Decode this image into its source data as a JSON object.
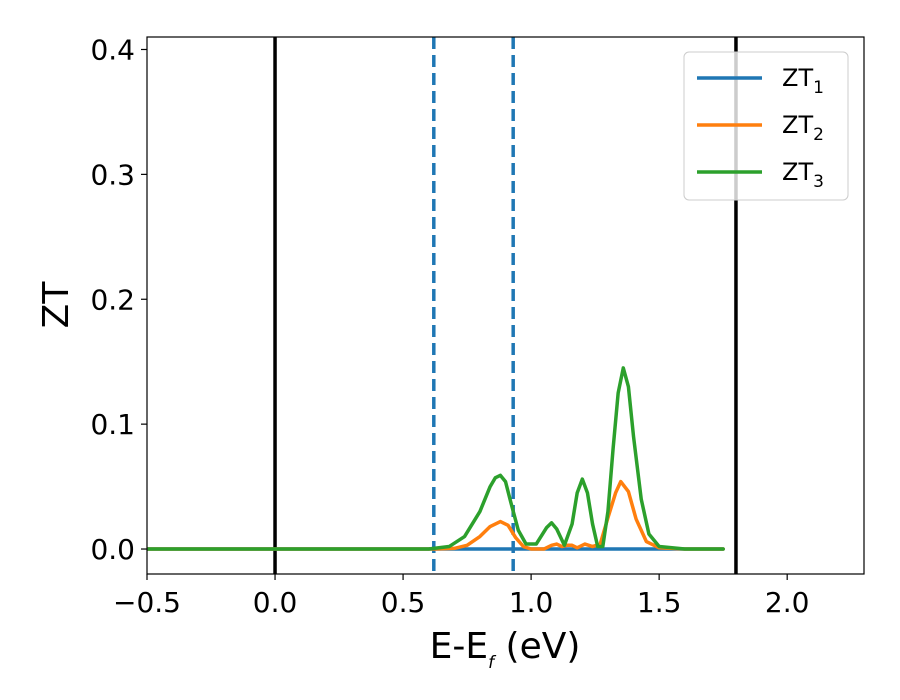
{
  "chart_data": {
    "type": "line",
    "xlabel": {
      "main": "E-E",
      "sub": "f",
      "suffix": " (eV)"
    },
    "ylabel": "ZT",
    "xlim": [
      -0.5,
      2.3
    ],
    "ylim": [
      -0.02,
      0.41
    ],
    "grid": false,
    "legend_position": "top-right",
    "x_ticks": [
      {
        "value": -0.5,
        "label": "−0.5"
      },
      {
        "value": 0.0,
        "label": "0.0"
      },
      {
        "value": 0.5,
        "label": "0.5"
      },
      {
        "value": 1.0,
        "label": "1.0"
      },
      {
        "value": 1.5,
        "label": "1.5"
      },
      {
        "value": 2.0,
        "label": "2.0"
      }
    ],
    "y_ticks": [
      {
        "value": 0.0,
        "label": "0.0"
      },
      {
        "value": 0.1,
        "label": "0.1"
      },
      {
        "value": 0.2,
        "label": "0.2"
      },
      {
        "value": 0.3,
        "label": "0.3"
      },
      {
        "value": 0.4,
        "label": "0.4"
      }
    ],
    "vertical_lines": [
      {
        "x": 0.0,
        "style": "solid",
        "color": "#000000"
      },
      {
        "x": 0.62,
        "style": "dashed",
        "color": "#1f77b4"
      },
      {
        "x": 0.93,
        "style": "dashed",
        "color": "#1f77b4"
      },
      {
        "x": 1.8,
        "style": "solid",
        "color": "#000000"
      }
    ],
    "series": [
      {
        "name": "ZT",
        "sub": "1",
        "color": "#1f77b4",
        "x": [
          -0.5,
          0.0,
          0.5,
          1.0,
          1.5,
          1.75
        ],
        "y": [
          0.0,
          0.0,
          0.0,
          0.0,
          0.0,
          0.0
        ]
      },
      {
        "name": "ZT",
        "sub": "2",
        "color": "#ff7f0e",
        "x": [
          -0.5,
          0.62,
          0.7,
          0.75,
          0.8,
          0.84,
          0.88,
          0.91,
          0.94,
          0.97,
          1.0,
          1.05,
          1.08,
          1.1,
          1.12,
          1.14,
          1.16,
          1.18,
          1.21,
          1.24,
          1.27,
          1.3,
          1.33,
          1.35,
          1.38,
          1.41,
          1.45,
          1.5,
          1.6,
          1.75
        ],
        "y": [
          0.0,
          0.0,
          0.0005,
          0.003,
          0.01,
          0.018,
          0.022,
          0.019,
          0.009,
          0.002,
          0.0,
          0.0,
          0.003,
          0.004,
          0.002,
          0.003,
          0.003,
          0.001,
          0.004,
          0.002,
          0.004,
          0.025,
          0.045,
          0.054,
          0.046,
          0.024,
          0.006,
          0.001,
          0.0,
          0.0
        ]
      },
      {
        "name": "ZT",
        "sub": "3",
        "color": "#2ca02c",
        "x": [
          -0.5,
          0.6,
          0.68,
          0.74,
          0.8,
          0.84,
          0.86,
          0.88,
          0.9,
          0.92,
          0.95,
          0.98,
          1.02,
          1.06,
          1.08,
          1.1,
          1.13,
          1.16,
          1.18,
          1.2,
          1.22,
          1.24,
          1.26,
          1.28,
          1.3,
          1.32,
          1.34,
          1.36,
          1.38,
          1.4,
          1.43,
          1.46,
          1.5,
          1.6,
          1.75
        ],
        "y": [
          0.0,
          0.0,
          0.002,
          0.01,
          0.03,
          0.05,
          0.057,
          0.059,
          0.054,
          0.038,
          0.015,
          0.004,
          0.004,
          0.017,
          0.021,
          0.016,
          0.003,
          0.02,
          0.045,
          0.056,
          0.045,
          0.02,
          0.002,
          0.002,
          0.03,
          0.08,
          0.125,
          0.145,
          0.13,
          0.09,
          0.04,
          0.012,
          0.002,
          0.0,
          0.0
        ]
      }
    ]
  }
}
